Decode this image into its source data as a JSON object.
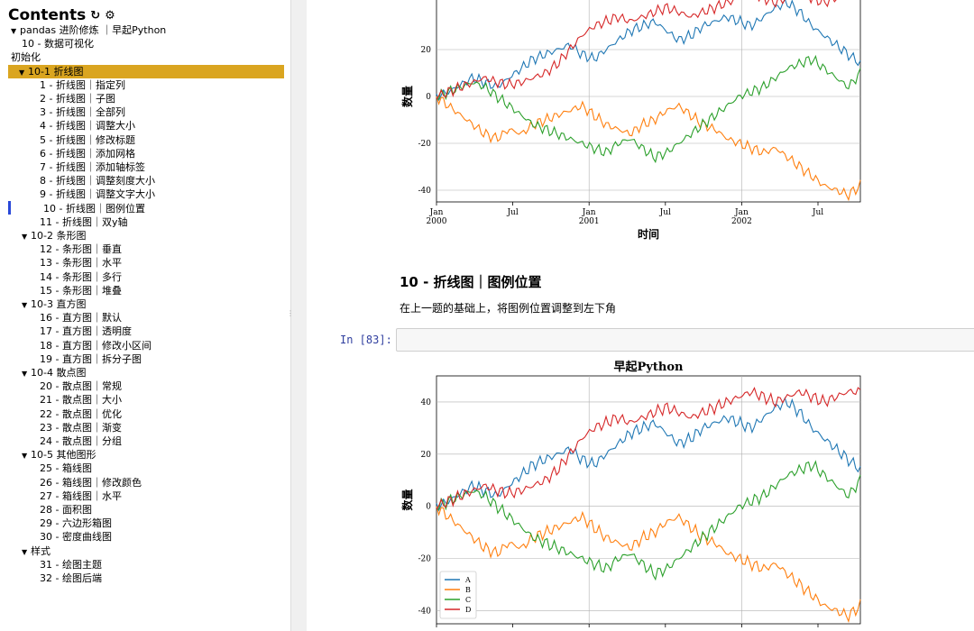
{
  "toc": {
    "title": "Contents",
    "items": [
      {
        "label": "pandas 进阶修炼 ｜早起Python",
        "level": 0,
        "caret": true
      },
      {
        "label": "10 - 数据可视化",
        "level": 1,
        "caret": false
      },
      {
        "label": "初始化",
        "level": 0,
        "caret": false
      },
      {
        "label": "10-1 折线图",
        "level": 1,
        "caret": true,
        "state": "active"
      },
      {
        "label": "1 - 折线图｜指定列",
        "level": 2
      },
      {
        "label": "2 - 折线图｜子图",
        "level": 2
      },
      {
        "label": "3 - 折线图｜全部列",
        "level": 2
      },
      {
        "label": "4 - 折线图｜调整大小",
        "level": 2
      },
      {
        "label": "5 - 折线图｜修改标题",
        "level": 2
      },
      {
        "label": "6 - 折线图｜添加网格",
        "level": 2
      },
      {
        "label": "7 - 折线图｜添加轴标签",
        "level": 2
      },
      {
        "label": "8 - 折线图｜调整刻度大小",
        "level": 2
      },
      {
        "label": "9 - 折线图｜调整文字大小",
        "level": 2
      },
      {
        "label": "10 - 折线图｜图例位置",
        "level": 2,
        "state": "current"
      },
      {
        "label": "11 - 折线图｜双y轴",
        "level": 2
      },
      {
        "label": "10-2 条形图",
        "level": 1,
        "caret": true
      },
      {
        "label": "12 - 条形图｜垂直",
        "level": 2
      },
      {
        "label": "13 - 条形图｜水平",
        "level": 2
      },
      {
        "label": "14 - 条形图｜多行",
        "level": 2
      },
      {
        "label": "15 - 条形图｜堆叠",
        "level": 2
      },
      {
        "label": "10-3 直方图",
        "level": 1,
        "caret": true
      },
      {
        "label": "16 - 直方图｜默认",
        "level": 2
      },
      {
        "label": "17 - 直方图｜透明度",
        "level": 2
      },
      {
        "label": "18 - 直方图｜修改小区间",
        "level": 2
      },
      {
        "label": "19 - 直方图｜拆分子图",
        "level": 2
      },
      {
        "label": "10-4 散点图",
        "level": 1,
        "caret": true
      },
      {
        "label": "20 - 散点图｜常规",
        "level": 2
      },
      {
        "label": "21 - 散点图｜大小",
        "level": 2
      },
      {
        "label": "22 - 散点图｜优化",
        "level": 2,
        "state": "highlight"
      },
      {
        "label": "23 - 散点图｜渐变",
        "level": 2
      },
      {
        "label": "24 - 散点图｜分组",
        "level": 2
      },
      {
        "label": "10-5 其他图形",
        "level": 1,
        "caret": true
      },
      {
        "label": "25 - 箱线图",
        "level": 2
      },
      {
        "label": "26 - 箱线图｜修改颜色",
        "level": 2
      },
      {
        "label": "27 - 箱线图｜水平",
        "level": 2
      },
      {
        "label": "28 - 面积图",
        "level": 2
      },
      {
        "label": "29 - 六边形箱图",
        "level": 2
      },
      {
        "label": "30 - 密度曲线图",
        "level": 2
      },
      {
        "label": "样式",
        "level": 1,
        "caret": true
      },
      {
        "label": "31 - 绘图主题",
        "level": 2
      },
      {
        "label": "32 - 绘图后端",
        "level": 2
      }
    ]
  },
  "notebook": {
    "cell_title": "10 - 折线图｜图例位置",
    "cell_desc": "在上一题的基础上，将图例位置调整到左下角",
    "prompt": "In [83]:"
  },
  "colors": {
    "A": "#1f77b4",
    "B": "#ff7f0e",
    "C": "#2ca02c",
    "D": "#d62728",
    "active_toc": "#daa520",
    "highlight_toc": "#ffd700"
  },
  "chart_data": [
    {
      "type": "line",
      "title": "",
      "xlabel": "时间",
      "ylabel": "数量",
      "x_ticks": [
        "Jan\n2000",
        "Jul",
        "Jan\n2001",
        "Jul",
        "Jan\n2002",
        "Jul"
      ],
      "y_ticks": [
        -40,
        -20,
        0,
        20
      ],
      "ylim": [
        -45,
        45
      ],
      "grid": true,
      "legend": "none",
      "series": [
        {
          "name": "A",
          "color": "#1f77b4",
          "values": [
            0,
            2,
            5,
            8,
            6,
            4,
            8,
            12,
            16,
            18,
            20,
            22,
            18,
            16,
            20,
            24,
            28,
            30,
            32,
            28,
            24,
            26,
            30,
            32,
            34,
            32,
            30,
            34,
            38,
            40,
            36,
            30,
            26,
            22,
            18,
            14
          ]
        },
        {
          "name": "B",
          "color": "#ff7f0e",
          "values": [
            0,
            -4,
            -8,
            -12,
            -16,
            -18,
            -14,
            -16,
            -12,
            -10,
            -8,
            -6,
            -4,
            -8,
            -12,
            -14,
            -16,
            -12,
            -10,
            -6,
            -4,
            -8,
            -12,
            -14,
            -18,
            -20,
            -22,
            -24,
            -22,
            -26,
            -30,
            -34,
            -38,
            -40,
            -42,
            -38
          ]
        },
        {
          "name": "C",
          "color": "#2ca02c",
          "values": [
            0,
            2,
            4,
            6,
            4,
            0,
            -4,
            -8,
            -12,
            -14,
            -16,
            -18,
            -20,
            -22,
            -24,
            -20,
            -18,
            -22,
            -26,
            -24,
            -20,
            -16,
            -12,
            -8,
            -4,
            0,
            2,
            4,
            8,
            12,
            14,
            16,
            12,
            8,
            4,
            10
          ]
        },
        {
          "name": "D",
          "color": "#d62728",
          "values": [
            0,
            2,
            4,
            6,
            8,
            6,
            5,
            6,
            8,
            10,
            14,
            20,
            26,
            30,
            32,
            34,
            32,
            34,
            36,
            38,
            36,
            34,
            36,
            38,
            40,
            42,
            44,
            42,
            40,
            42,
            44,
            42,
            40,
            42,
            44,
            44
          ]
        }
      ]
    },
    {
      "type": "line",
      "title": "早起Python",
      "xlabel": "",
      "ylabel": "数量",
      "y_ticks": [
        -40,
        -20,
        0,
        20,
        40
      ],
      "ylim": [
        -45,
        50
      ],
      "grid": true,
      "legend": "lower-left",
      "series": [
        {
          "name": "A",
          "color": "#1f77b4",
          "values": [
            0,
            2,
            5,
            8,
            6,
            4,
            8,
            12,
            16,
            18,
            20,
            22,
            18,
            16,
            20,
            24,
            28,
            30,
            32,
            28,
            24,
            26,
            30,
            32,
            34,
            32,
            30,
            34,
            38,
            40,
            36,
            30,
            26,
            22,
            18,
            14
          ]
        },
        {
          "name": "B",
          "color": "#ff7f0e",
          "values": [
            0,
            -4,
            -8,
            -12,
            -16,
            -18,
            -14,
            -16,
            -12,
            -10,
            -8,
            -6,
            -4,
            -8,
            -12,
            -14,
            -16,
            -12,
            -10,
            -6,
            -4,
            -8,
            -12,
            -14,
            -18,
            -20,
            -22,
            -24,
            -22,
            -26,
            -30,
            -34,
            -38,
            -40,
            -42,
            -38
          ]
        },
        {
          "name": "C",
          "color": "#2ca02c",
          "values": [
            0,
            2,
            4,
            6,
            4,
            0,
            -4,
            -8,
            -12,
            -14,
            -16,
            -18,
            -20,
            -22,
            -24,
            -20,
            -18,
            -22,
            -26,
            -24,
            -20,
            -16,
            -12,
            -8,
            -4,
            0,
            2,
            4,
            8,
            12,
            14,
            16,
            12,
            8,
            4,
            10
          ]
        },
        {
          "name": "D",
          "color": "#d62728",
          "values": [
            0,
            2,
            4,
            6,
            8,
            6,
            5,
            6,
            8,
            10,
            14,
            20,
            26,
            30,
            32,
            34,
            32,
            34,
            36,
            38,
            36,
            34,
            36,
            38,
            40,
            42,
            44,
            42,
            40,
            42,
            44,
            42,
            40,
            42,
            44,
            44
          ]
        }
      ]
    }
  ]
}
